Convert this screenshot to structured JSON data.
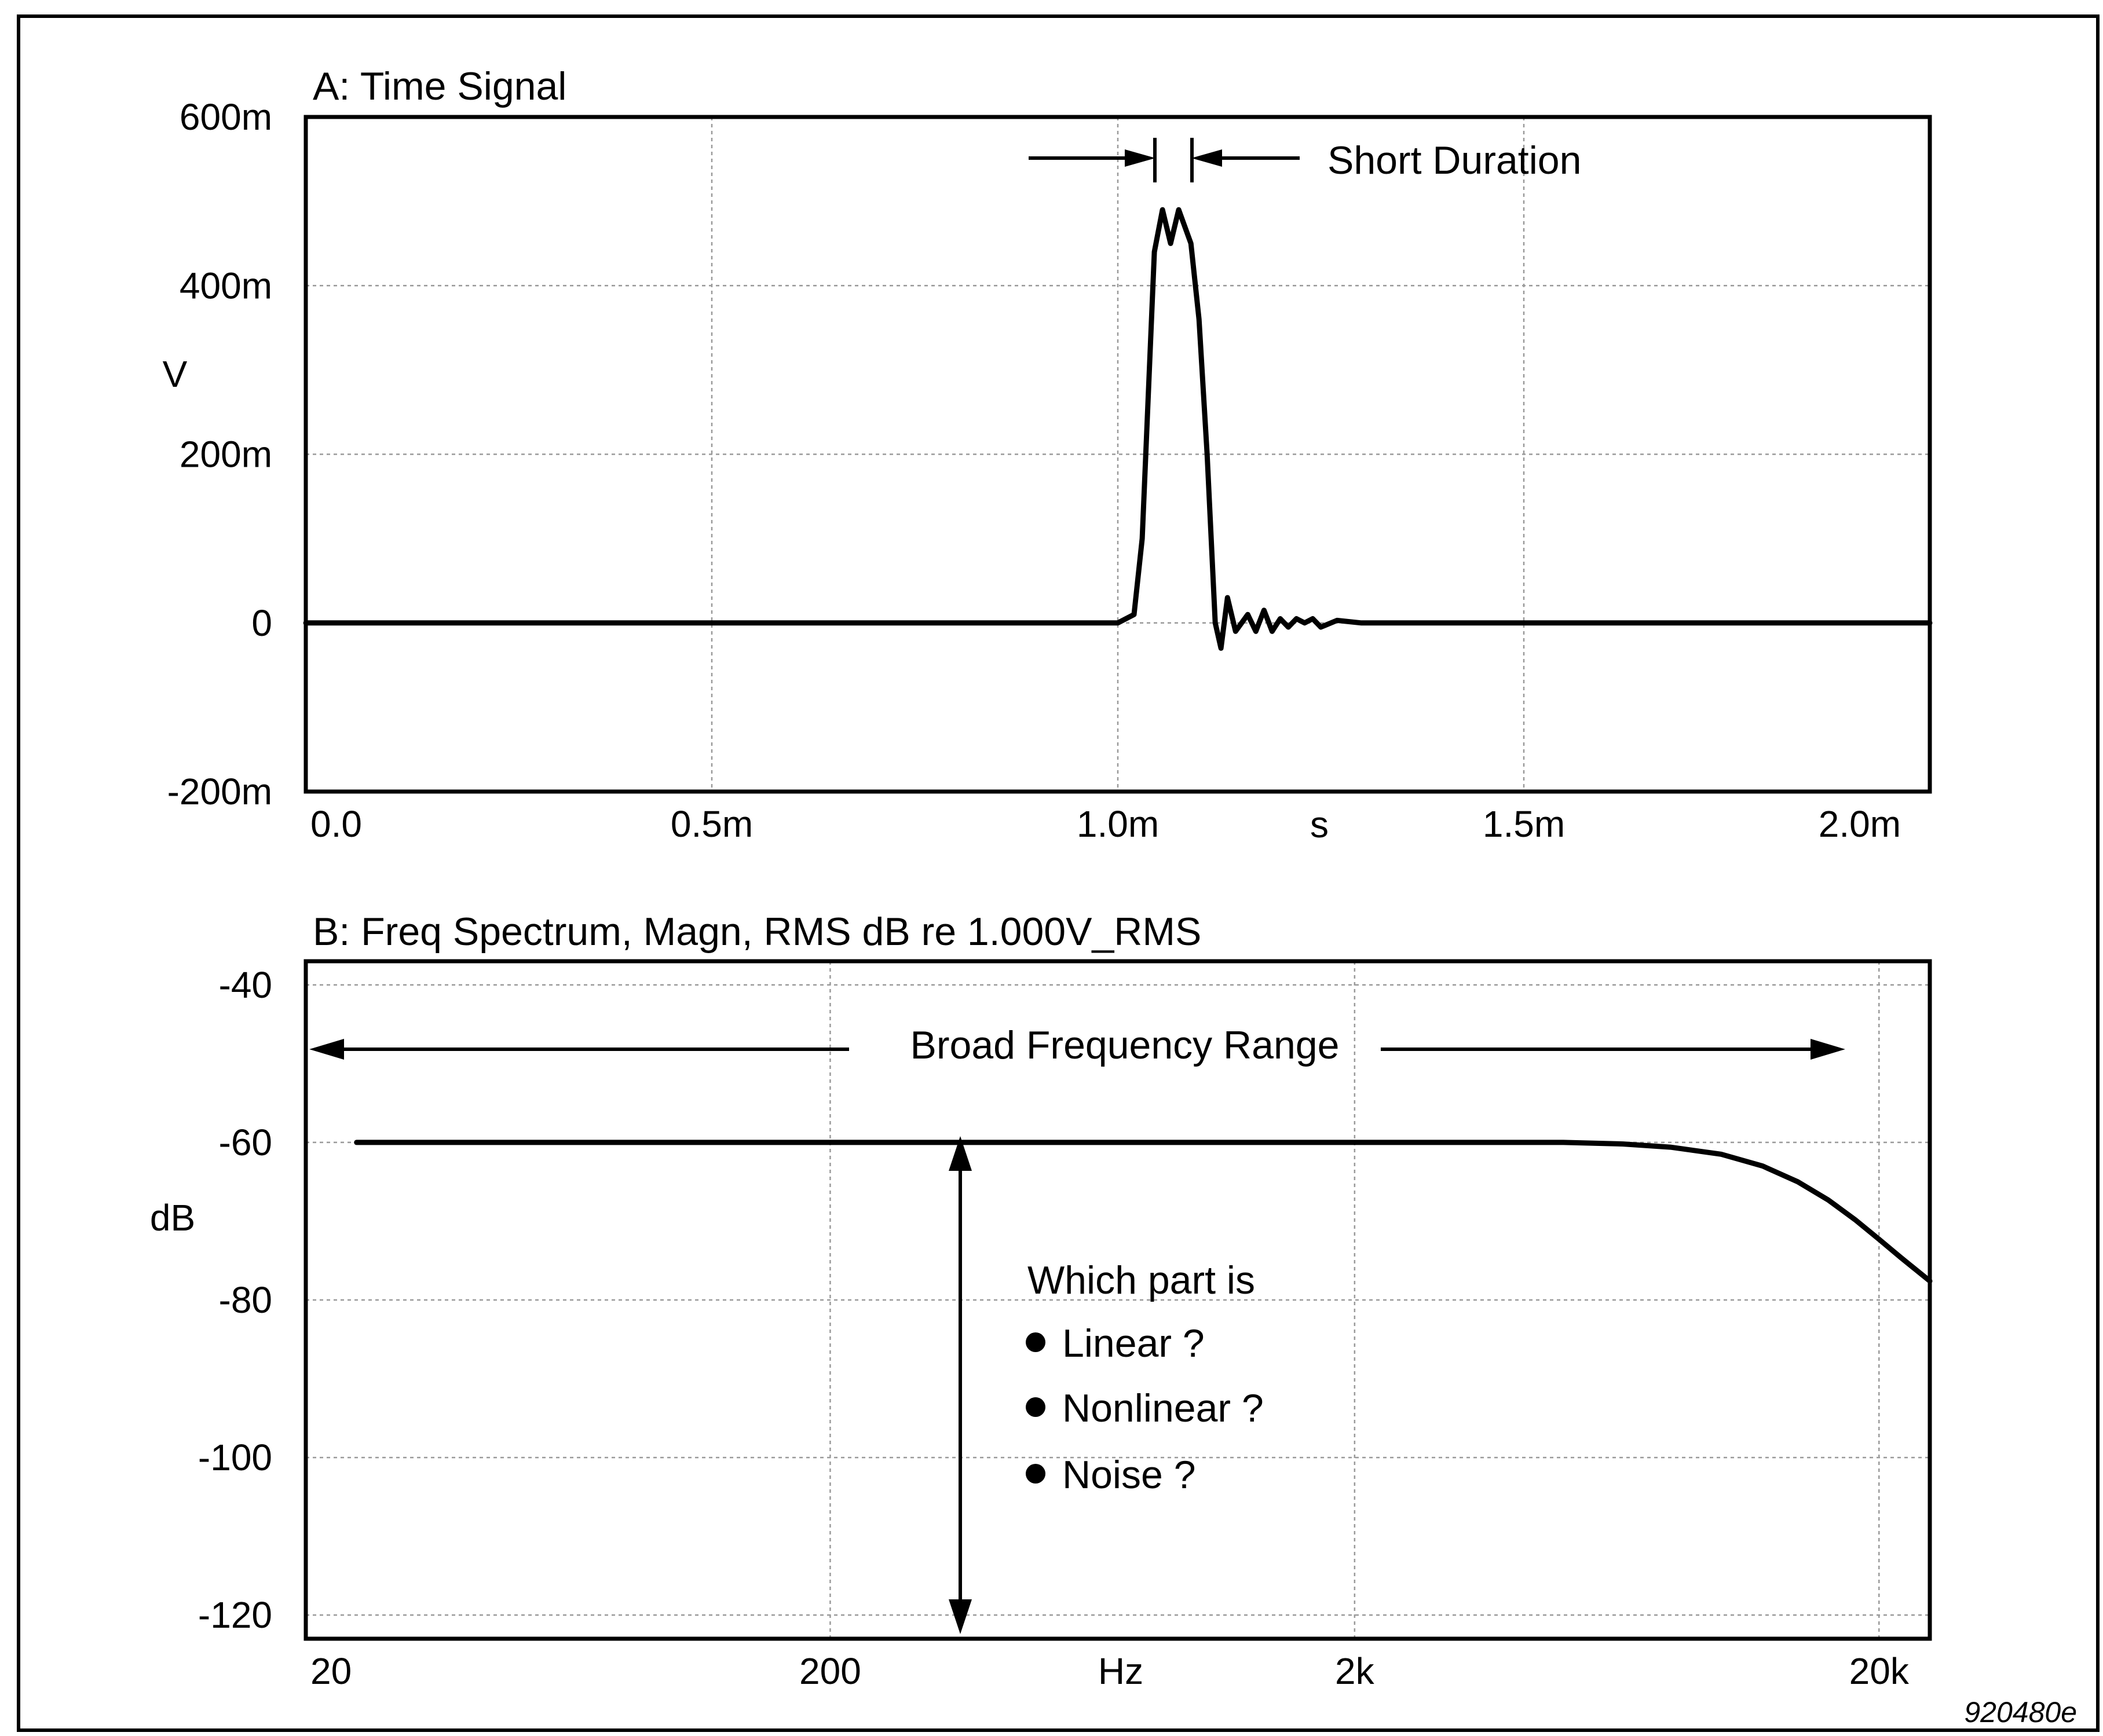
{
  "figure_id": "920480e",
  "colors": {
    "line": "#000000",
    "grid": "#9a9a9a",
    "background": "#ffffff"
  },
  "chart_data": [
    {
      "type": "line",
      "title": "A: Time Signal",
      "xlabel": "s",
      "ylabel": "V",
      "xlim": [
        0,
        0.002
      ],
      "ylim": [
        -0.2,
        0.6
      ],
      "x_scale": "linear",
      "grid": true,
      "x_ticks": [
        {
          "value": 0,
          "label": "0.0"
        },
        {
          "value": 0.0005,
          "label": "0.5m"
        },
        {
          "value": 0.001,
          "label": "1.0m"
        },
        {
          "value": 0.0015,
          "label": "1.5m"
        },
        {
          "value": 0.002,
          "label": "2.0m"
        }
      ],
      "y_ticks": [
        {
          "value": 0.6,
          "label": "600m"
        },
        {
          "value": 0.4,
          "label": "400m"
        },
        {
          "value": 0.2,
          "label": "200m"
        },
        {
          "value": 0,
          "label": "0"
        },
        {
          "value": -0.2,
          "label": "-200m"
        }
      ],
      "series": [
        {
          "x": [
            0,
            0.001,
            0.00102,
            0.00103,
            0.001045,
            0.001055,
            0.001065,
            0.001075,
            0.00109,
            0.0011,
            0.00111,
            0.001115,
            0.00112,
            0.001127,
            0.001135,
            0.001145,
            0.00116,
            0.00117,
            0.00118,
            0.00119,
            0.0012,
            0.00121,
            0.00122,
            0.00123,
            0.00124,
            0.00125,
            0.00127,
            0.0013,
            0.002
          ],
          "y": [
            0,
            0,
            0.01,
            0.1,
            0.44,
            0.49,
            0.45,
            0.49,
            0.45,
            0.36,
            0.2,
            0.1,
            0.0,
            -0.03,
            0.03,
            -0.01,
            0.01,
            -0.01,
            0.015,
            -0.01,
            0.005,
            -0.005,
            0.005,
            0.0,
            0.005,
            -0.005,
            0.003,
            0,
            0
          ]
        }
      ],
      "annotations": [
        {
          "text": "Short Duration"
        }
      ]
    },
    {
      "type": "line",
      "title": "B: Freq Spectrum, Magn, RMS dB re 1.000V_RMS",
      "xlabel": "Hz",
      "ylabel": "dB",
      "xlim": [
        20,
        25000
      ],
      "ylim": [
        -123,
        -37
      ],
      "x_scale": "log",
      "grid": true,
      "x_ticks": [
        {
          "value": 20,
          "label": "20"
        },
        {
          "value": 200,
          "label": "200"
        },
        {
          "value": 2000,
          "label": "2k"
        },
        {
          "value": 20000,
          "label": "20k"
        }
      ],
      "y_ticks": [
        {
          "value": -40,
          "label": "-40"
        },
        {
          "value": -60,
          "label": "-60"
        },
        {
          "value": -80,
          "label": "-80"
        },
        {
          "value": -100,
          "label": "-100"
        },
        {
          "value": -120,
          "label": "-120"
        }
      ],
      "series": [
        {
          "x": [
            25,
            100,
            1000,
            5000,
            6500,
            8000,
            10000,
            12000,
            14000,
            16000,
            18000,
            20000,
            22000,
            25000
          ],
          "y": [
            -60,
            -60,
            -60,
            -60,
            -60.2,
            -60.6,
            -61.5,
            -63,
            -65,
            -67.3,
            -69.8,
            -72.3,
            -74.6,
            -77.6
          ]
        }
      ],
      "annotations": [
        {
          "text": "Broad Frequency Range"
        },
        {
          "text": "Which part is"
        },
        {
          "text": "Linear ?"
        },
        {
          "text": "Nonlinear ?"
        },
        {
          "text": "Noise ?"
        }
      ]
    }
  ]
}
